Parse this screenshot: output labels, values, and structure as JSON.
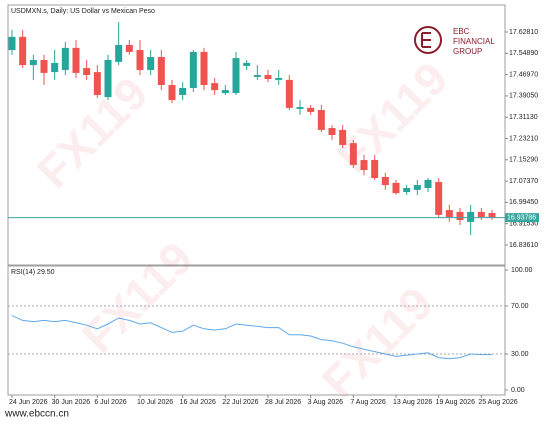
{
  "logo": {
    "name": "EBC",
    "line1": "FINANCIAL",
    "line2": "GROUP"
  },
  "watermark": "FX119",
  "footer": "www.ebccn.cn",
  "chart_data": [
    {
      "type": "candlestick",
      "title": "USDMXN.s, Daily:  US Dollar vs Mexican Peso",
      "categories": [
        "24 Jun 2026",
        null,
        null,
        null,
        "30 Jun 2026",
        null,
        null,
        null,
        "6 Jul 2026",
        null,
        null,
        null,
        "10 Jul 2026",
        null,
        null,
        null,
        "16 Jul 2026",
        null,
        null,
        null,
        "22 Jul 2026",
        null,
        null,
        null,
        "28 Jul 2026",
        null,
        null,
        null,
        "3 Aug 2026",
        null,
        null,
        null,
        "7 Aug 2026",
        null,
        null,
        null,
        "13 Aug 2026",
        null,
        null,
        null,
        "19 Aug 2026",
        null,
        null,
        null,
        "25 Aug 2026",
        null
      ],
      "open": [
        17.561,
        17.61,
        17.505,
        17.524,
        17.479,
        17.487,
        17.569,
        17.494,
        17.479,
        17.386,
        17.517,
        17.58,
        17.561,
        17.487,
        17.535,
        17.431,
        17.394,
        17.42,
        17.554,
        17.438,
        17.401,
        17.401,
        17.502,
        17.461,
        17.468,
        17.45,
        17.45,
        17.342,
        17.346,
        17.338,
        17.271,
        17.264,
        17.215,
        17.152,
        17.152,
        17.089,
        17.067,
        17.033,
        17.041,
        17.048,
        17.07,
        16.966,
        16.959,
        16.922,
        16.959,
        16.955
      ],
      "high": [
        17.636,
        17.636,
        17.543,
        17.543,
        17.561,
        17.591,
        17.598,
        17.524,
        17.505,
        17.543,
        17.665,
        17.598,
        17.598,
        17.561,
        17.561,
        17.45,
        17.442,
        17.561,
        17.569,
        17.457,
        17.431,
        17.554,
        17.524,
        17.505,
        17.487,
        17.487,
        17.468,
        17.375,
        17.357,
        17.357,
        17.282,
        17.282,
        17.227,
        17.171,
        17.171,
        17.104,
        17.078,
        17.059,
        17.078,
        17.085,
        17.085,
        16.985,
        16.974,
        16.985,
        16.974,
        16.966
      ],
      "low": [
        17.543,
        17.494,
        17.45,
        17.431,
        17.45,
        17.468,
        17.457,
        17.45,
        17.383,
        17.375,
        17.505,
        17.543,
        17.468,
        17.468,
        17.412,
        17.364,
        17.375,
        17.405,
        17.412,
        17.394,
        17.394,
        17.394,
        17.487,
        17.45,
        17.442,
        17.431,
        17.338,
        17.32,
        17.32,
        17.256,
        17.227,
        17.197,
        17.122,
        17.096,
        17.078,
        17.041,
        17.022,
        17.022,
        17.022,
        17.033,
        16.936,
        16.922,
        16.911,
        16.873,
        16.929,
        16.929
      ],
      "close": [
        17.61,
        17.505,
        17.524,
        17.476,
        17.513,
        17.569,
        17.476,
        17.468,
        17.394,
        17.524,
        17.58,
        17.554,
        17.487,
        17.535,
        17.431,
        17.375,
        17.42,
        17.554,
        17.431,
        17.412,
        17.412,
        17.531,
        17.513,
        17.468,
        17.453,
        17.457,
        17.346,
        17.349,
        17.331,
        17.264,
        17.245,
        17.208,
        17.134,
        17.115,
        17.085,
        17.059,
        17.029,
        17.048,
        17.059,
        17.078,
        16.948,
        16.94,
        16.929,
        16.959,
        16.94,
        16.938
      ],
      "up_color": "#26a69a",
      "down_color": "#ef5350",
      "ylim": [
        16.7617,
        17.7285
      ],
      "yticks": [
        {
          "value": 17.6281,
          "label": "17.62810"
        },
        {
          "value": 17.5489,
          "label": "17.54890"
        },
        {
          "value": 17.4697,
          "label": "17.46970"
        },
        {
          "value": 17.3905,
          "label": "17.39050"
        },
        {
          "value": 17.3113,
          "label": "17.31130"
        },
        {
          "value": 17.2321,
          "label": "17.23210"
        },
        {
          "value": 17.1529,
          "label": "17.15290"
        },
        {
          "value": 17.0737,
          "label": "17.07370"
        },
        {
          "value": 16.9945,
          "label": "16.99450"
        },
        {
          "value": 16.9153,
          "label": "16.91530"
        },
        {
          "value": 16.8361,
          "label": "16.83610"
        }
      ],
      "current_price": 16.93786,
      "current_price_color": "#3aa6a0"
    },
    {
      "type": "line",
      "title": "RSI(14) 29.50",
      "values": [
        62,
        58,
        57,
        58,
        57,
        58,
        56,
        54,
        51,
        55,
        60,
        58,
        55,
        56,
        52,
        48,
        49,
        54,
        51,
        50,
        51,
        55,
        54,
        53,
        52,
        52,
        46,
        46,
        45,
        42,
        41,
        39,
        36,
        34,
        32,
        30,
        28,
        29,
        30,
        31,
        27,
        26,
        27,
        30,
        29.5,
        29.5
      ],
      "color": "#5fa8e8",
      "ylim": [
        -4.17,
        103.33
      ],
      "yticks": [
        {
          "value": 100,
          "label": "100.00"
        },
        {
          "value": 70,
          "label": "70.00"
        },
        {
          "value": 30,
          "label": "30.00"
        },
        {
          "value": 0,
          "label": "0.00"
        }
      ],
      "levels": [
        70,
        30
      ]
    }
  ]
}
